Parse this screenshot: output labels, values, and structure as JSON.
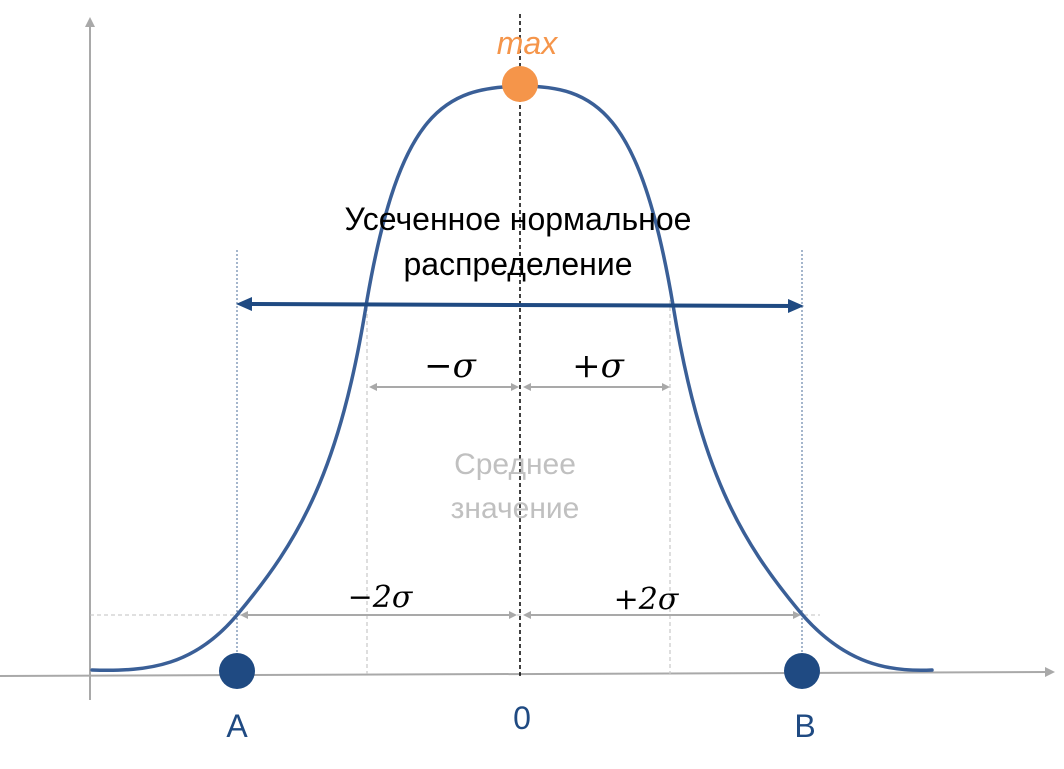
{
  "max_label": "max",
  "title_line1": "Усеченное нормальное",
  "title_line2": "распределение",
  "mean_line1": "Среднее",
  "mean_line2": "значение",
  "minus_sigma": "−σ",
  "plus_sigma": "+σ",
  "minus_2sigma": "−2σ",
  "plus_2sigma": "+2σ",
  "point_a": "A",
  "point_b": "B",
  "zero": "0",
  "colors": {
    "curve": "#3a5f97",
    "arrow": "#1f4a82",
    "point": "#1f4a82",
    "max": "#f5954a",
    "gray": "#a9a9a9",
    "mean_text": "#c0c0c0",
    "text": "#000000"
  }
}
